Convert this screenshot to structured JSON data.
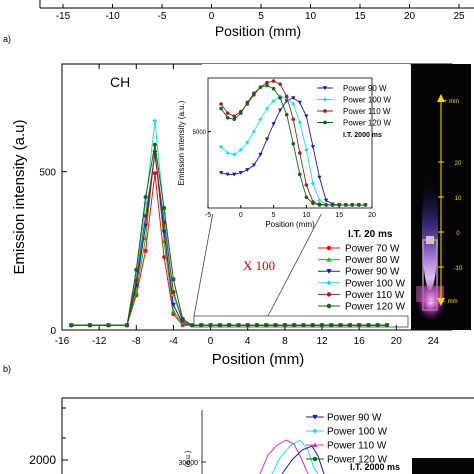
{
  "top_strip": {
    "x_ticks": [
      "-15",
      "-10",
      "-5",
      "0",
      "5",
      "10",
      "15",
      "20",
      "25"
    ],
    "xlabel": "Position (mm)"
  },
  "panel_a": {
    "label": "a)",
    "species": "CH",
    "x100_note": "X 100",
    "it_main": "I.T. 20 ms",
    "it_inset": "I.T. 2000 ms"
  },
  "panel_b": {
    "label": "b)",
    "y_tick": "2000",
    "inset_y_tick": "30000",
    "inset_ylabel": "(a.u.)",
    "legend": [
      "Power 90 W",
      "Power 100 W",
      "Power 110 W",
      "Power 120 W"
    ],
    "it_inset": "I.T. 2000 ms"
  },
  "photo": {
    "scale_top": "+ mm",
    "scale_bottom": "- mm",
    "ticks": [
      "20",
      "10",
      "0",
      "-10"
    ]
  },
  "colors": {
    "70": "#ee1111",
    "80": "#11bb11",
    "90": "#1a1aaa",
    "100": "#22dddd",
    "110": "#992222",
    "120": "#116611"
  },
  "chart_data": [
    {
      "type": "line",
      "xlabel": "Position (mm)",
      "ylabel": "Emission intensity (a.u)",
      "xlim": [
        -16,
        26
      ],
      "ylim": [
        0,
        840
      ],
      "x_ticks": [
        -16,
        -12,
        -8,
        -4,
        0,
        4,
        8,
        12,
        16,
        20,
        24
      ],
      "y_ticks": [
        0,
        500
      ],
      "x": [
        -15,
        -13,
        -11,
        -9,
        -8,
        -7,
        -6,
        -5,
        -4,
        -3,
        -2,
        -1,
        0,
        1,
        2,
        3,
        4,
        5,
        6,
        7,
        8,
        9,
        10,
        11,
        12,
        13,
        14,
        15,
        16,
        17,
        18,
        19
      ],
      "series": [
        {
          "name": "Power 70 W",
          "key": "70",
          "marker": "circle",
          "values": [
            15,
            15,
            15,
            15,
            110,
            250,
            495,
            230,
            50,
            15,
            15,
            15,
            15,
            15,
            15,
            15,
            15,
            15,
            15,
            15,
            15,
            15,
            15,
            15,
            15,
            15,
            15,
            15,
            15,
            15,
            15,
            15
          ]
        },
        {
          "name": "Power 80 W",
          "key": "80",
          "marker": "triangle-up",
          "values": [
            15,
            15,
            15,
            15,
            120,
            290,
            570,
            280,
            60,
            18,
            15,
            15,
            15,
            15,
            15,
            15,
            15,
            15,
            15,
            15,
            15,
            15,
            15,
            15,
            15,
            15,
            15,
            15,
            15,
            15,
            15,
            15
          ]
        },
        {
          "name": "Power 90 W",
          "key": "90",
          "marker": "triangle-down",
          "values": [
            15,
            15,
            15,
            15,
            140,
            330,
            560,
            310,
            80,
            20,
            15,
            15,
            15,
            15,
            15,
            15,
            15,
            15,
            15,
            15,
            15,
            15,
            15,
            15,
            15,
            15,
            15,
            15,
            15,
            15,
            15,
            15
          ]
        },
        {
          "name": "Power 100 W",
          "key": "100",
          "marker": "diamond",
          "values": [
            15,
            15,
            15,
            15,
            170,
            400,
            660,
            370,
            110,
            25,
            15,
            15,
            15,
            15,
            15,
            15,
            15,
            15,
            15,
            15,
            15,
            15,
            15,
            15,
            15,
            15,
            15,
            15,
            15,
            15,
            15,
            15
          ]
        },
        {
          "name": "Power 110 W",
          "key": "110",
          "marker": "circle",
          "values": [
            15,
            15,
            15,
            15,
            155,
            360,
            555,
            340,
            120,
            28,
            15,
            15,
            15,
            15,
            15,
            15,
            15,
            15,
            15,
            15,
            15,
            15,
            15,
            15,
            15,
            15,
            15,
            15,
            15,
            15,
            15,
            15
          ]
        },
        {
          "name": "Power 120 W",
          "key": "120",
          "marker": "circle",
          "values": [
            15,
            15,
            15,
            15,
            190,
            420,
            585,
            385,
            160,
            35,
            15,
            15,
            15,
            15,
            15,
            15,
            15,
            15,
            15,
            15,
            15,
            15,
            15,
            15,
            15,
            15,
            15,
            15,
            15,
            15,
            15,
            15
          ]
        }
      ]
    },
    {
      "type": "line",
      "xlabel": "Position (mm)",
      "ylabel": "Emission intensity (a.u.)",
      "xlim": [
        -5,
        20
      ],
      "ylim": [
        0,
        8500
      ],
      "x_ticks": [
        -5,
        0,
        5,
        10,
        15,
        20
      ],
      "y_ticks": [
        5000
      ],
      "x": [
        -3,
        -2,
        -1,
        0,
        1,
        2,
        3,
        4,
        5,
        6,
        7,
        8,
        9,
        10,
        11,
        12,
        13,
        14,
        15,
        16,
        17,
        18,
        19
      ],
      "series": [
        {
          "name": "Power 90 W",
          "key": "90",
          "marker": "triangle-down",
          "values": [
            2300,
            2200,
            2200,
            2300,
            2500,
            2800,
            3500,
            4500,
            5500,
            6400,
            7000,
            7200,
            6900,
            6000,
            4000,
            2000,
            500,
            250,
            200,
            200,
            200,
            200,
            200
          ]
        },
        {
          "name": "Power 100 W",
          "key": "100",
          "marker": "diamond",
          "values": [
            4000,
            3600,
            3500,
            3800,
            4300,
            5000,
            5800,
            6500,
            7000,
            7300,
            7200,
            6800,
            5600,
            3800,
            1600,
            500,
            250,
            200,
            200,
            200,
            200,
            200,
            200
          ]
        },
        {
          "name": "Power 110 W",
          "key": "110",
          "marker": "circle",
          "values": [
            6800,
            6200,
            6000,
            6300,
            6800,
            7400,
            7900,
            8200,
            8300,
            8100,
            7300,
            5800,
            3600,
            1500,
            400,
            250,
            200,
            200,
            200,
            200,
            200,
            200,
            200
          ]
        },
        {
          "name": "Power 120 W",
          "key": "120",
          "marker": "circle",
          "values": [
            6500,
            5900,
            5800,
            6200,
            6900,
            7500,
            7900,
            8000,
            7800,
            7200,
            6100,
            4200,
            2200,
            700,
            300,
            200,
            200,
            200,
            200,
            200,
            200,
            200,
            200
          ]
        }
      ]
    }
  ]
}
